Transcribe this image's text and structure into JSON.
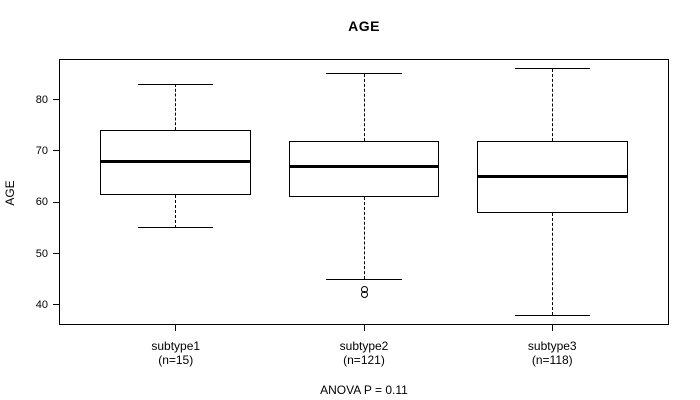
{
  "chart_data": {
    "type": "boxplot",
    "title": "AGE",
    "ylabel": "AGE",
    "xlabel": "",
    "footnote": "ANOVA P = 0.11",
    "ylim": [
      36.1,
      87.9
    ],
    "yticks": [
      40,
      50,
      60,
      70,
      80
    ],
    "grid": false,
    "line_color": "#000000",
    "background_color": "#ffffff",
    "groups": [
      {
        "label": "subtype1",
        "sublabel": "(n=15)",
        "whisker_low": 55,
        "q1": 61.5,
        "median": 68,
        "q3": 74,
        "whisker_high": 83,
        "outliers": []
      },
      {
        "label": "subtype2",
        "sublabel": "(n=121)",
        "whisker_low": 45,
        "q1": 61,
        "median": 67,
        "q3": 72,
        "whisker_high": 85,
        "outliers": [
          43,
          42
        ]
      },
      {
        "label": "subtype3",
        "sublabel": "(n=118)",
        "whisker_low": 38,
        "q1": 58,
        "median": 65,
        "q3": 72,
        "whisker_high": 86,
        "outliers": []
      }
    ]
  }
}
